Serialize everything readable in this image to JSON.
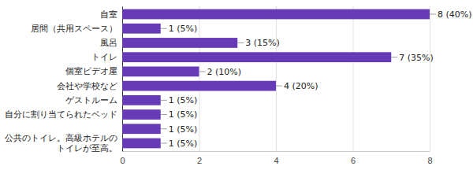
{
  "chart_data": {
    "type": "bar",
    "orientation": "horizontal",
    "categories": [
      "自室",
      "居間（共用スペース）",
      "風呂",
      "トイレ",
      "個室ビデオ屋",
      "会社や学校など",
      "ゲストルーム",
      "自分に割り当てられたベッド",
      null,
      "公共のトイレ。高級ホテルのトイレが至高。"
    ],
    "values": [
      8,
      1,
      3,
      7,
      2,
      4,
      1,
      1,
      1,
      1
    ],
    "value_labels": [
      "8 (40%)",
      "1 (5%)",
      "3 (15%)",
      "7 (35%)",
      "2 (10%)",
      "4 (20%)",
      "1 (5%)",
      "1 (5%)",
      "1 (5%)",
      "1 (5%)"
    ],
    "color": "#673ab7",
    "xlim": [
      0,
      8
    ],
    "xticks": [
      0,
      2,
      4,
      6,
      8
    ],
    "grid": true,
    "data_labels": true
  }
}
